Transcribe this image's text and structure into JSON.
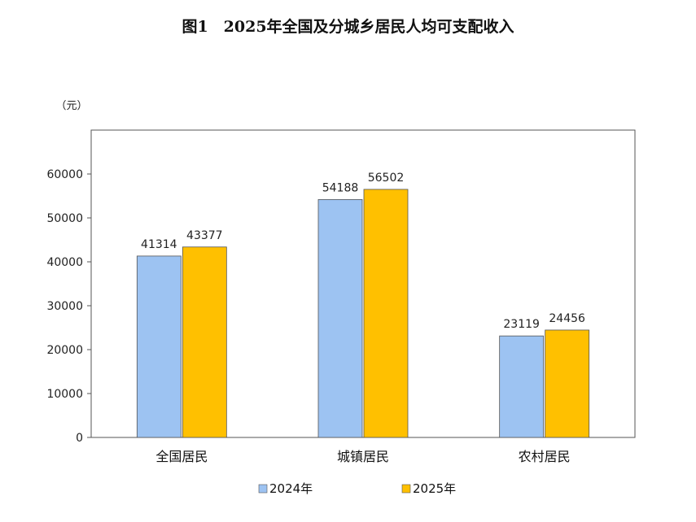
{
  "chart_data": {
    "type": "bar",
    "title": "图1　2025年全国及分城乡居民人均可支配收入",
    "unit_label": "（元）",
    "categories": [
      "全国居民",
      "城镇居民",
      "农村居民"
    ],
    "series": [
      {
        "name": "2024年",
        "values": [
          41314,
          54188,
          23119
        ],
        "color": "#9DC3F2"
      },
      {
        "name": "2025年",
        "values": [
          43377,
          56502,
          24456
        ],
        "color": "#FFC000"
      }
    ],
    "ylim": [
      0,
      70000
    ],
    "yticks": [
      0,
      10000,
      20000,
      30000,
      40000,
      50000,
      60000
    ],
    "grid": false,
    "legend_position": "bottom"
  }
}
